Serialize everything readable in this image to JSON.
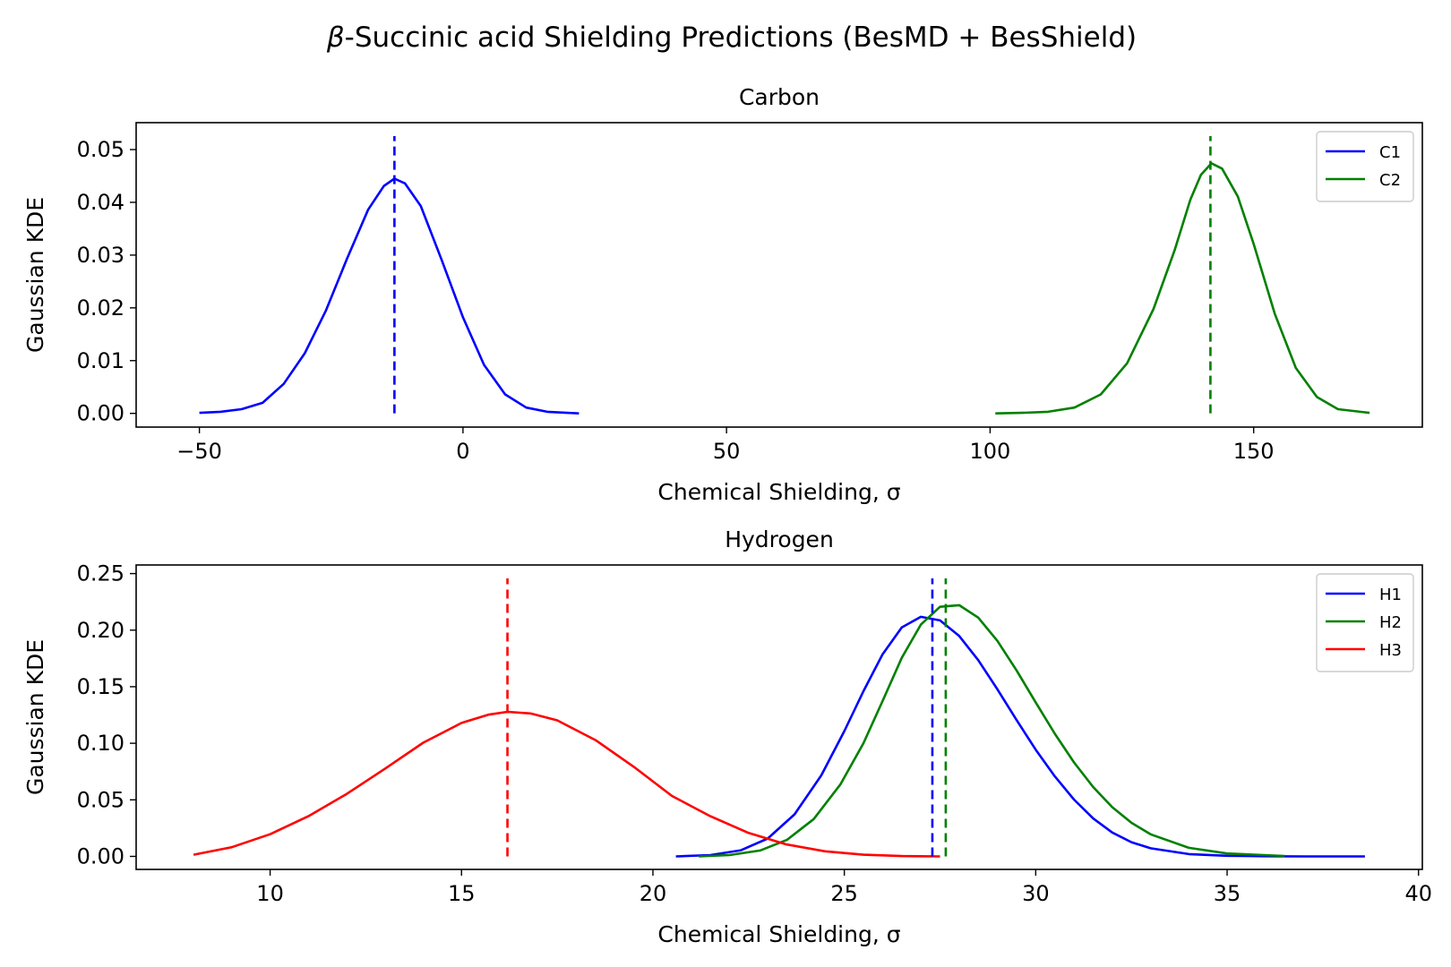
{
  "figure": {
    "title_symbol": "β",
    "title_rest": "-Succinic acid Shielding Predictions (BesMD + BesShield)"
  },
  "chart_data": [
    {
      "type": "line",
      "title": "Carbon",
      "xlabel": "Chemical Shielding, σ",
      "ylabel": "Gaussian KDE",
      "xlim": [
        -62,
        182
      ],
      "ylim": [
        -0.0026,
        0.0551
      ],
      "xticks": [
        -50,
        0,
        50,
        100,
        150
      ],
      "xtick_labels": [
        "−50",
        "0",
        "50",
        "100",
        "150"
      ],
      "yticks": [
        0.0,
        0.01,
        0.02,
        0.03,
        0.04,
        0.05
      ],
      "ytick_labels": [
        "0.00",
        "0.01",
        "0.02",
        "0.03",
        "0.04",
        "0.05"
      ],
      "legend_position": "top-right",
      "series": [
        {
          "name": "C1",
          "color": "#0000ff",
          "x": [
            -50,
            -46,
            -42,
            -38,
            -34,
            -30,
            -26,
            -22,
            -18,
            -15,
            -13,
            -11,
            -8,
            -4,
            0,
            4,
            8,
            12,
            16,
            22
          ],
          "y": [
            0.0001,
            0.0003,
            0.0008,
            0.002,
            0.0056,
            0.0114,
            0.0195,
            0.0293,
            0.0386,
            0.0431,
            0.0445,
            0.0436,
            0.0393,
            0.029,
            0.0182,
            0.0092,
            0.0036,
            0.0011,
            0.0003,
            0.0
          ],
          "marker_x": -13
        },
        {
          "name": "C2",
          "color": "#008000",
          "x": [
            101,
            106,
            111,
            116,
            121,
            126,
            131,
            135,
            138,
            140,
            142,
            144,
            147,
            150,
            154,
            158,
            162,
            166,
            172
          ],
          "y": [
            0.0,
            0.0001,
            0.0003,
            0.0011,
            0.0036,
            0.0095,
            0.0198,
            0.0309,
            0.0405,
            0.0452,
            0.0474,
            0.0464,
            0.0411,
            0.0321,
            0.0189,
            0.0086,
            0.0031,
            0.0008,
            0.0001
          ],
          "marker_x": 141.8
        }
      ]
    },
    {
      "type": "line",
      "title": "Hydrogen",
      "xlabel": "Chemical Shielding, σ",
      "ylabel": "Gaussian KDE",
      "xlim": [
        6.5,
        40.1
      ],
      "ylim": [
        -0.0115,
        0.2576
      ],
      "xticks": [
        10,
        15,
        20,
        25,
        30,
        35,
        40
      ],
      "xtick_labels": [
        "10",
        "15",
        "20",
        "25",
        "30",
        "35",
        "40"
      ],
      "yticks": [
        0.0,
        0.05,
        0.1,
        0.15,
        0.2,
        0.25
      ],
      "ytick_labels": [
        "0.00",
        "0.05",
        "0.10",
        "0.15",
        "0.20",
        "0.25"
      ],
      "legend_position": "top-right",
      "series": [
        {
          "name": "H1",
          "color": "#0000ff",
          "x": [
            20.6,
            21.5,
            22.3,
            23,
            23.7,
            24.4,
            25,
            25.5,
            26,
            26.5,
            27,
            27.5,
            28,
            28.5,
            29,
            29.5,
            30,
            30.5,
            31,
            31.5,
            32,
            32.5,
            33,
            34,
            35,
            36,
            37,
            38.6
          ],
          "y": [
            0.0,
            0.0012,
            0.0054,
            0.0158,
            0.0372,
            0.0717,
            0.1108,
            0.146,
            0.1787,
            0.2024,
            0.2118,
            0.2086,
            0.1948,
            0.1735,
            0.1477,
            0.1205,
            0.0944,
            0.0707,
            0.0502,
            0.0335,
            0.0211,
            0.0126,
            0.0072,
            0.002,
            0.0005,
            0.0001,
            0.0,
            0.0
          ],
          "marker_x": 27.3
        },
        {
          "name": "H2",
          "color": "#008000",
          "x": [
            21.2,
            22,
            22.8,
            23.5,
            24.2,
            24.9,
            25.5,
            26,
            26.5,
            27,
            27.5,
            28,
            28.5,
            29,
            29.5,
            30,
            30.5,
            31,
            31.5,
            32,
            32.5,
            33,
            34,
            35,
            36.5
          ],
          "y": [
            0.0,
            0.0012,
            0.0052,
            0.0145,
            0.033,
            0.0638,
            0.1,
            0.1374,
            0.1755,
            0.2049,
            0.2206,
            0.2221,
            0.2111,
            0.1905,
            0.1644,
            0.1362,
            0.1084,
            0.0831,
            0.0613,
            0.0435,
            0.0297,
            0.0195,
            0.0076,
            0.0026,
            0.0004
          ],
          "marker_x": 27.65
        },
        {
          "name": "H3",
          "color": "#ff0000",
          "x": [
            8,
            9,
            10,
            11,
            12,
            13,
            14,
            15,
            15.7,
            16.2,
            16.8,
            17.5,
            18.5,
            19.5,
            20.5,
            21.5,
            22.5,
            23.5,
            24.5,
            25.5,
            26.5,
            27.5
          ],
          "y": [
            0.0015,
            0.0081,
            0.0196,
            0.0355,
            0.0552,
            0.0775,
            0.1005,
            0.118,
            0.1253,
            0.1278,
            0.1264,
            0.1203,
            0.1028,
            0.0792,
            0.0534,
            0.0355,
            0.0207,
            0.0105,
            0.0045,
            0.0015,
            0.0003,
            0.0
          ],
          "marker_x": 16.2
        }
      ]
    }
  ]
}
